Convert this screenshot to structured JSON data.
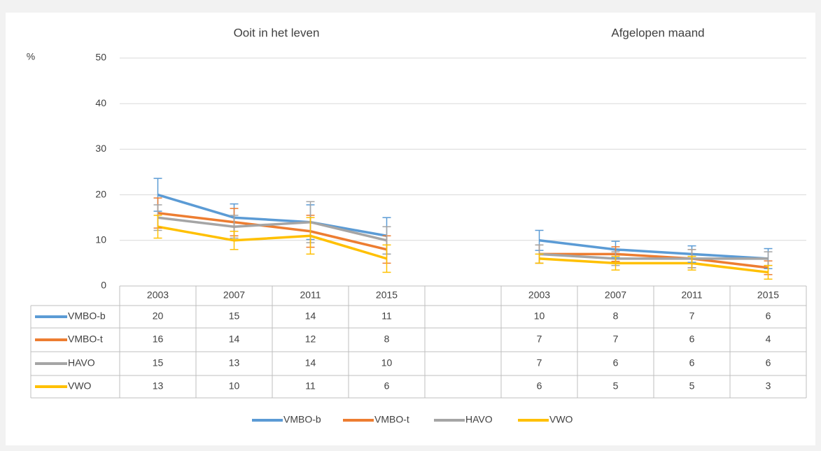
{
  "chart_data": {
    "type": "line",
    "annotations": [
      "Ooit in het leven",
      "Afgelopen maand"
    ],
    "y_label": "%",
    "categories": [
      "2003",
      "2007",
      "2011",
      "2015",
      null,
      "2003",
      "2007",
      "2011",
      "2015"
    ],
    "ylim": [
      0,
      50
    ],
    "yticks": [
      0,
      10,
      20,
      30,
      40,
      50
    ],
    "grid": true,
    "legend": "bottom",
    "series": [
      {
        "name": "VMBO-b",
        "color": "#5b9bd5",
        "values": [
          20,
          15,
          14,
          11,
          null,
          10,
          8,
          7,
          6
        ],
        "errors": [
          3.6,
          3,
          3.8,
          4,
          null,
          2.2,
          1.8,
          1.8,
          2.2
        ]
      },
      {
        "name": "VMBO-t",
        "color": "#ed7d31",
        "values": [
          16,
          14,
          12,
          8,
          null,
          7,
          7,
          6,
          4
        ],
        "errors": [
          3.3,
          3,
          3.5,
          3,
          null,
          2,
          1.6,
          2,
          1.5
        ]
      },
      {
        "name": "HAVO",
        "color": "#a5a5a5",
        "values": [
          15,
          13,
          14,
          10,
          null,
          7,
          6,
          6,
          6
        ],
        "errors": [
          2.8,
          2.5,
          4.5,
          3,
          null,
          2,
          1.5,
          2,
          1.5
        ]
      },
      {
        "name": "VWO",
        "color": "#ffc000",
        "values": [
          13,
          10,
          11,
          6,
          null,
          6,
          5,
          5,
          3
        ],
        "errors": [
          2.5,
          2,
          4,
          3,
          null,
          1,
          1.5,
          1.5,
          1.5
        ]
      }
    ]
  }
}
